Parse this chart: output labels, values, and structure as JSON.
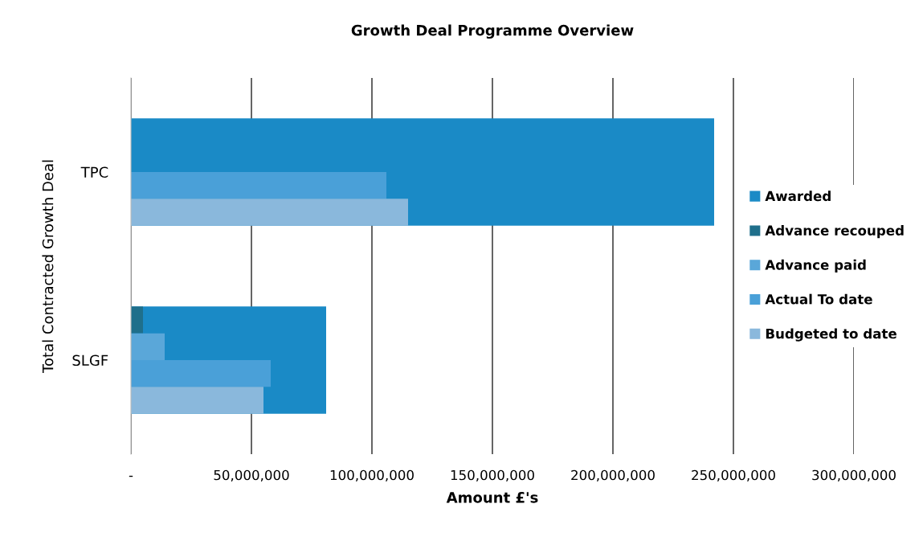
{
  "chart_data": {
    "type": "bar",
    "orientation": "horizontal",
    "title": "Growth Deal Programme Overview",
    "xlabel": "Amount £'s",
    "ylabel": "Total Contracted Growth Deal",
    "categories": [
      "TPC",
      "SLGF"
    ],
    "series": [
      {
        "name": "Awarded",
        "color": "#1a8ac6",
        "values": [
          242000000,
          81000000
        ]
      },
      {
        "name": "Advance recouped",
        "color": "#1f6f8b",
        "values": [
          0,
          5000000
        ]
      },
      {
        "name": "Advance paid",
        "color": "#5aa7d9",
        "values": [
          0,
          14000000
        ]
      },
      {
        "name": "Actual To date",
        "color": "#4aa0d8",
        "values": [
          106000000,
          58000000
        ]
      },
      {
        "name": "Budgeted to date",
        "color": "#8ab8dc",
        "values": [
          115000000,
          55000000
        ]
      }
    ],
    "xlim": [
      0,
      300000000
    ],
    "xticks": [
      {
        "value": 0,
        "label": "-"
      },
      {
        "value": 50000000,
        "label": "50,000,000"
      },
      {
        "value": 100000000,
        "label": "100,000,000"
      },
      {
        "value": 150000000,
        "label": "150,000,000"
      },
      {
        "value": 200000000,
        "label": "200,000,000"
      },
      {
        "value": 250000000,
        "label": "250,000,000"
      },
      {
        "value": 300000000,
        "label": "300,000,000"
      }
    ],
    "grid": "x",
    "legend": "right"
  }
}
